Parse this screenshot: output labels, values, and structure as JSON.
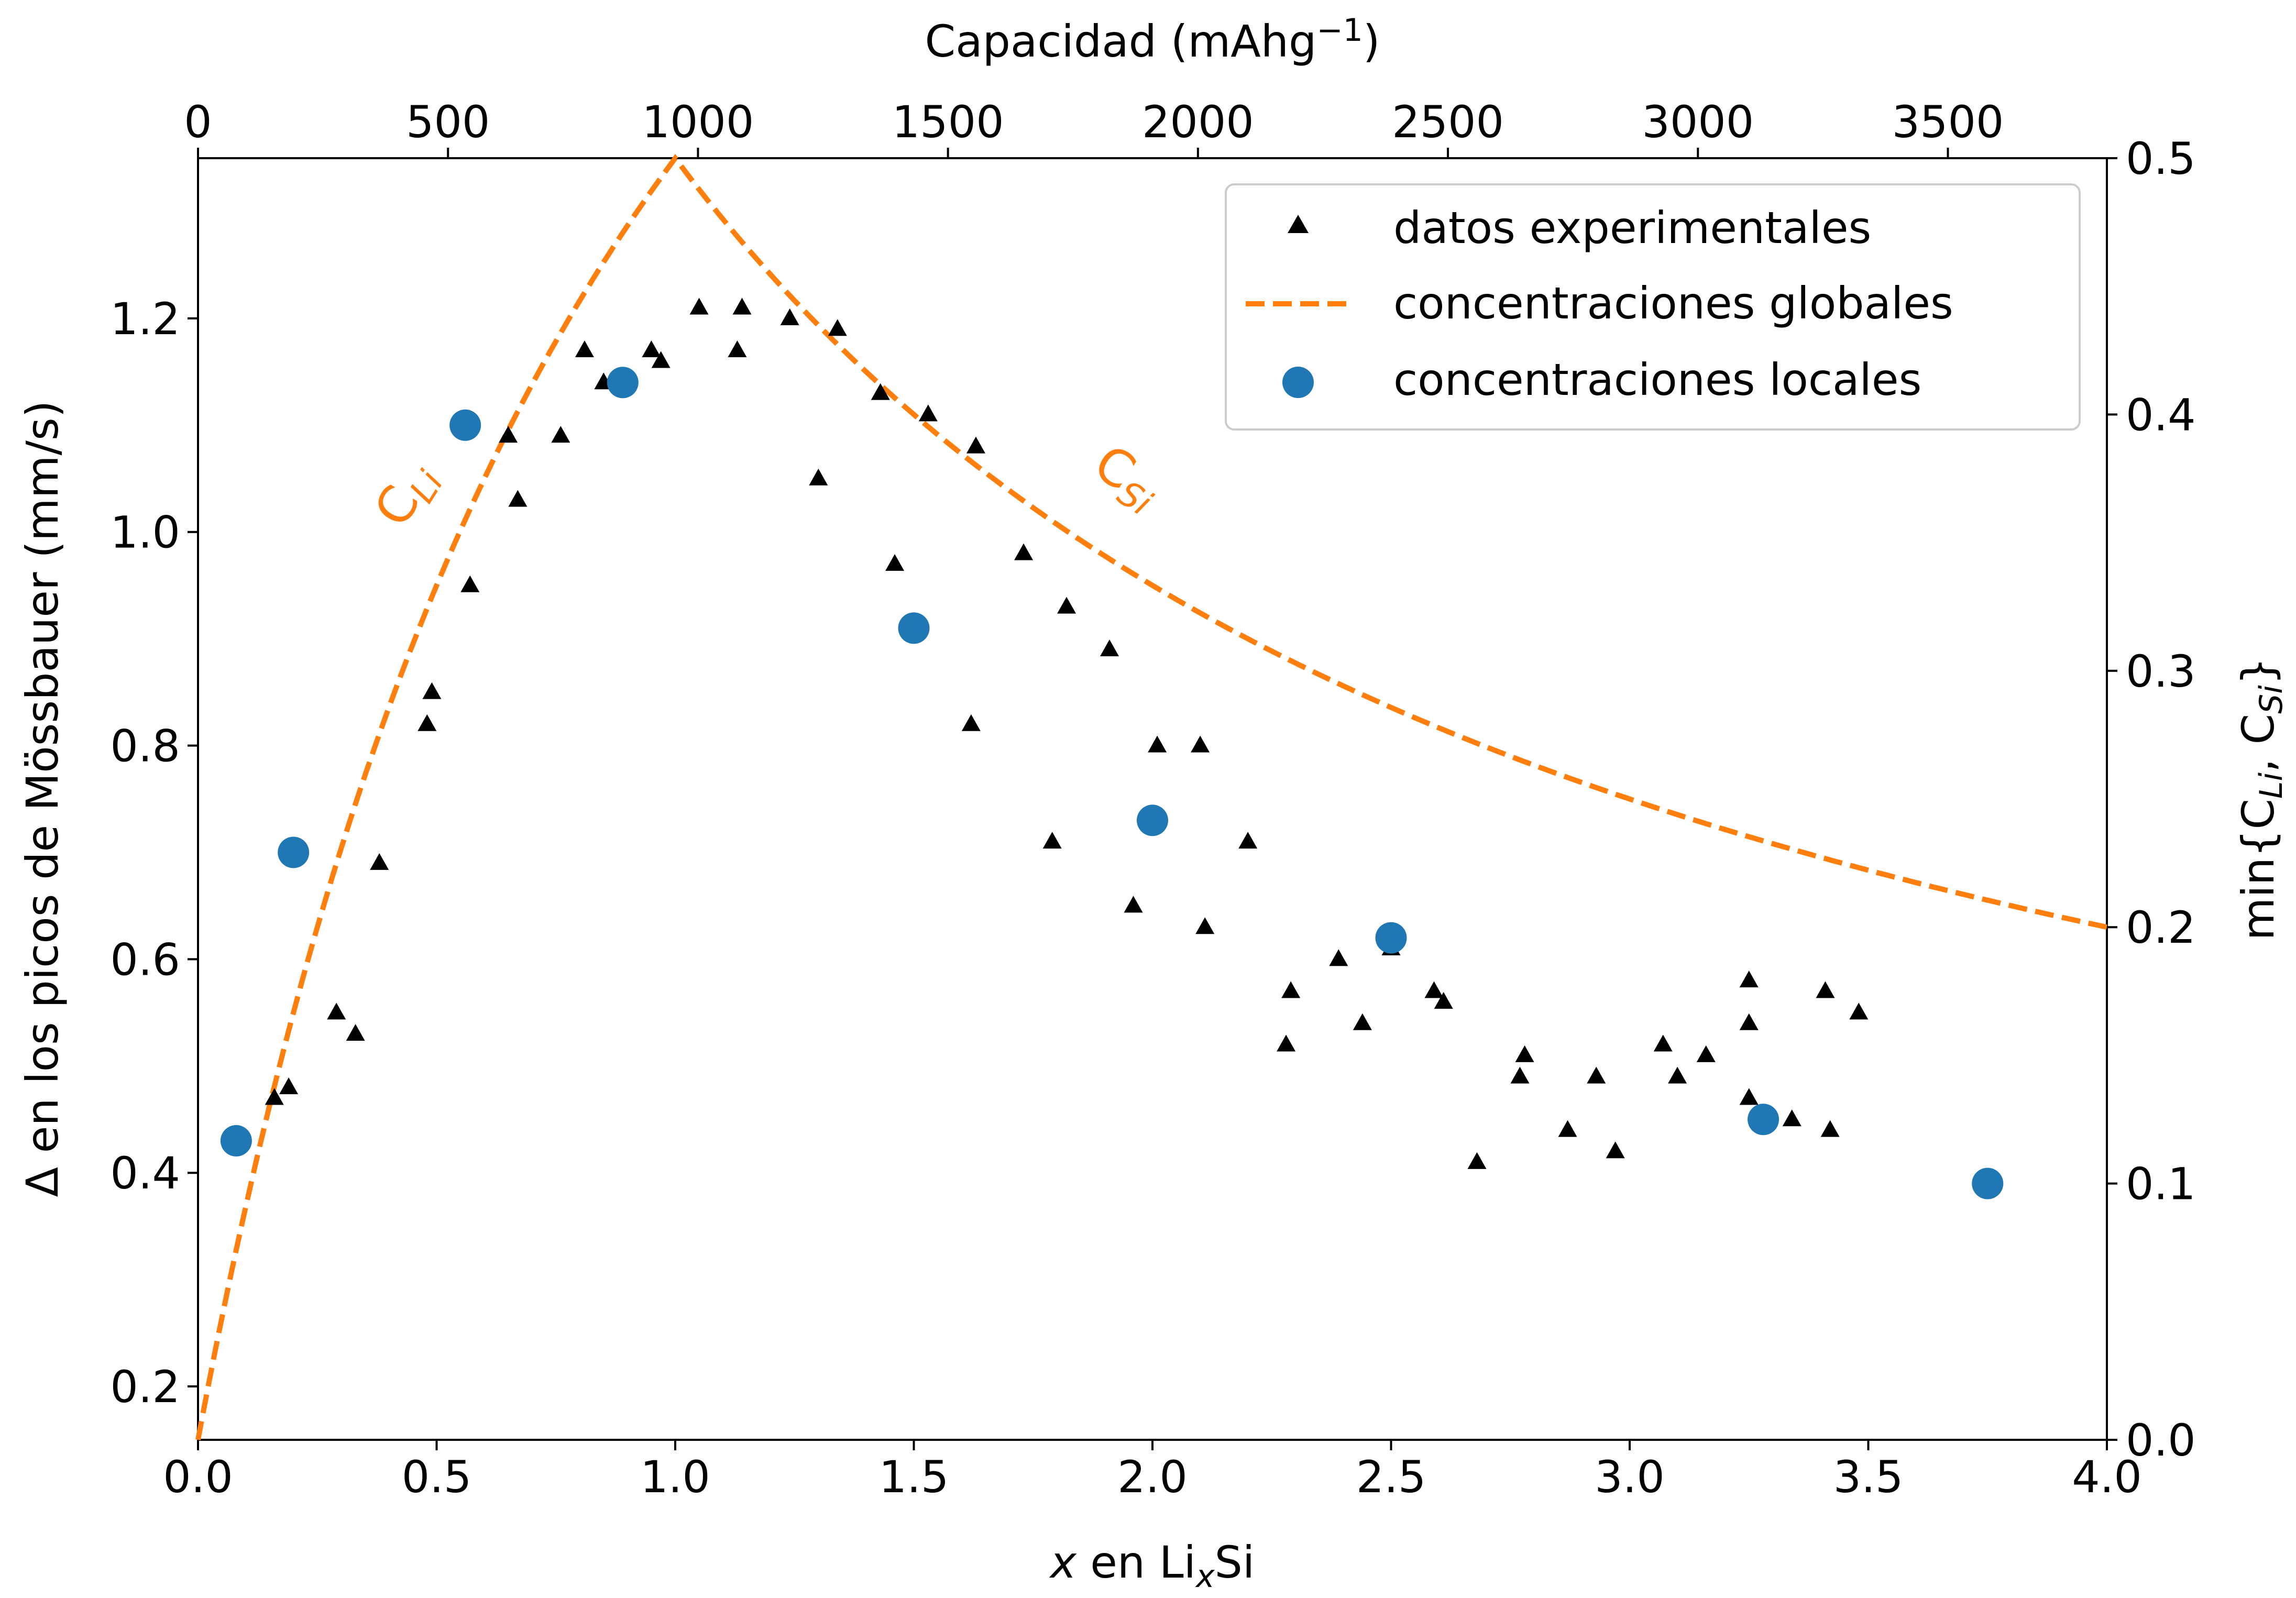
{
  "chart_data": {
    "type": "scatter",
    "x_axis": {
      "label_prefix": "x",
      "label_mid": " en Li",
      "label_sub": "x",
      "label_suffix": "Si",
      "range": [
        0.0,
        4.0
      ],
      "ticks": [
        0.0,
        0.5,
        1.0,
        1.5,
        2.0,
        2.5,
        3.0,
        3.5,
        4.0
      ],
      "tick_labels": [
        "0.0",
        "0.5",
        "1.0",
        "1.5",
        "2.0",
        "2.5",
        "3.0",
        "3.5",
        "4.0"
      ]
    },
    "x2_axis": {
      "label_main": "Capacidad (mAhg",
      "label_sup": "−1",
      "label_end": ")",
      "range": [
        0,
        3818
      ],
      "ticks": [
        0,
        500,
        1000,
        1500,
        2000,
        2500,
        3000,
        3500
      ],
      "tick_labels": [
        "0",
        "500",
        "1000",
        "1500",
        "2000",
        "2500",
        "3000",
        "3500"
      ]
    },
    "y_axis": {
      "label": "Δ en los picos de Mössbauer (mm/s)",
      "range": [
        0.15,
        1.35
      ],
      "ticks": [
        0.2,
        0.4,
        0.6,
        0.8,
        1.0,
        1.2
      ],
      "tick_labels": [
        "0.2",
        "0.4",
        "0.6",
        "0.8",
        "1.0",
        "1.2"
      ]
    },
    "y2_axis": {
      "label_start": "min{C",
      "label_sub1": "Li",
      "label_mid": ", C",
      "label_sub2": "Si",
      "label_end": "}",
      "range": [
        0.0,
        0.5
      ],
      "ticks": [
        0.0,
        0.1,
        0.2,
        0.3,
        0.4,
        0.5
      ],
      "tick_labels": [
        "0.0",
        "0.1",
        "0.2",
        "0.3",
        "0.4",
        "0.5"
      ]
    },
    "legend": {
      "position": "upper right",
      "entries": [
        "datos experimentales",
        "concentraciones globales",
        "concentraciones locales"
      ]
    },
    "annotations": {
      "cli_main": "C",
      "cli_sub": "Li",
      "csi_main": "C",
      "csi_sub": "Si"
    },
    "colors": {
      "experimental": "#000000",
      "global": "#ff7f0e",
      "local": "#1f77b4"
    },
    "series": [
      {
        "name": "datos experimentales",
        "marker": "triangle",
        "axis": "left",
        "points": [
          [
            0.16,
            0.47
          ],
          [
            0.19,
            0.48
          ],
          [
            0.29,
            0.55
          ],
          [
            0.33,
            0.53
          ],
          [
            0.38,
            0.69
          ],
          [
            0.48,
            0.82
          ],
          [
            0.49,
            0.85
          ],
          [
            0.57,
            0.95
          ],
          [
            0.65,
            1.09
          ],
          [
            0.67,
            1.03
          ],
          [
            0.76,
            1.09
          ],
          [
            0.81,
            1.17
          ],
          [
            0.85,
            1.14
          ],
          [
            0.95,
            1.17
          ],
          [
            0.97,
            1.16
          ],
          [
            1.05,
            1.21
          ],
          [
            1.13,
            1.17
          ],
          [
            1.14,
            1.21
          ],
          [
            1.24,
            1.2
          ],
          [
            1.3,
            1.05
          ],
          [
            1.34,
            1.19
          ],
          [
            1.43,
            1.13
          ],
          [
            1.46,
            0.97
          ],
          [
            1.53,
            1.11
          ],
          [
            1.62,
            0.82
          ],
          [
            1.63,
            1.08
          ],
          [
            1.73,
            0.98
          ],
          [
            1.79,
            0.71
          ],
          [
            1.82,
            0.93
          ],
          [
            1.91,
            0.89
          ],
          [
            1.96,
            0.65
          ],
          [
            2.01,
            0.8
          ],
          [
            2.1,
            0.8
          ],
          [
            2.11,
            0.63
          ],
          [
            2.2,
            0.71
          ],
          [
            2.28,
            0.52
          ],
          [
            2.29,
            0.57
          ],
          [
            2.39,
            0.6
          ],
          [
            2.44,
            0.54
          ],
          [
            2.5,
            0.61
          ],
          [
            2.59,
            0.57
          ],
          [
            2.61,
            0.56
          ],
          [
            2.68,
            0.41
          ],
          [
            2.77,
            0.49
          ],
          [
            2.78,
            0.51
          ],
          [
            2.87,
            0.44
          ],
          [
            2.93,
            0.49
          ],
          [
            2.97,
            0.42
          ],
          [
            3.07,
            0.52
          ],
          [
            3.1,
            0.49
          ],
          [
            3.16,
            0.51
          ],
          [
            3.25,
            0.58
          ],
          [
            3.25,
            0.54
          ],
          [
            3.25,
            0.47
          ],
          [
            3.34,
            0.45
          ],
          [
            3.41,
            0.57
          ],
          [
            3.42,
            0.44
          ],
          [
            3.48,
            0.55
          ]
        ]
      },
      {
        "name": "concentraciones globales",
        "marker": "dashed-line",
        "axis": "right",
        "formula": "min(x/(x+1), 1/(x+1))",
        "x_range": [
          0.0,
          4.0
        ]
      },
      {
        "name": "concentraciones locales",
        "marker": "circle",
        "axis": "left",
        "points": [
          [
            0.08,
            0.43
          ],
          [
            0.2,
            0.7
          ],
          [
            0.56,
            1.1
          ],
          [
            0.89,
            1.14
          ],
          [
            1.5,
            0.91
          ],
          [
            2.0,
            0.73
          ],
          [
            2.5,
            0.62
          ],
          [
            3.28,
            0.45
          ],
          [
            3.75,
            0.39
          ]
        ]
      }
    ]
  }
}
